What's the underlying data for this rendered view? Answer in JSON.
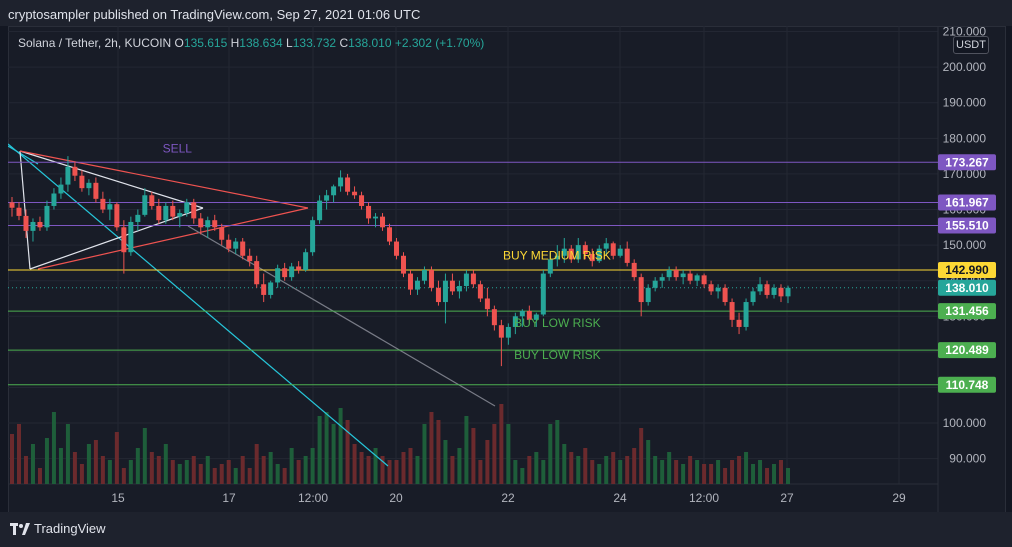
{
  "header": {
    "published_text": "cryptosampler published on TradingView.com, Sep 27, 2021 01:06 UTC"
  },
  "symbol": {
    "name": "Solana / Tether, 2h, KUCOIN",
    "o_label": "O",
    "o": "135.615",
    "h_label": "H",
    "h": "138.634",
    "l_label": "L",
    "l": "133.732",
    "c_label": "C",
    "c": "138.010",
    "change": "+2.302 (+1.70%)"
  },
  "currency_badge": "USDT",
  "footer": {
    "logo_text": "TradingView"
  },
  "chart_data": {
    "type": "candlestick",
    "xlabel": "",
    "ylabel": "",
    "ylim": [
      84,
      211
    ],
    "x_ticks": [
      "15",
      "17",
      "12:00",
      "20",
      "22",
      "24",
      "12:00",
      "27",
      "29"
    ],
    "y_ticks": [
      "90.000",
      "100.000",
      "110.000",
      "120.000",
      "130.000",
      "140.000",
      "150.000",
      "160.000",
      "170.000",
      "180.000",
      "190.000",
      "200.000",
      "210.000"
    ],
    "levels": [
      {
        "value": 173.267,
        "label": "173.267",
        "color": "#7e57c2"
      },
      {
        "value": 161.967,
        "label": "161.967",
        "color": "#7e57c2"
      },
      {
        "value": 155.51,
        "label": "155.510",
        "color": "#7e57c2"
      },
      {
        "value": 142.99,
        "label": "142.990",
        "color": "#fdd835"
      },
      {
        "value": 131.456,
        "label": "131.456",
        "color": "#4caf50"
      },
      {
        "value": 120.489,
        "label": "120.489",
        "color": "#4caf50"
      },
      {
        "value": 110.748,
        "label": "110.748",
        "color": "#4caf50"
      }
    ],
    "last_price": {
      "value": 138.01,
      "label": "138.010",
      "color": "#26a69a"
    },
    "annotations": [
      {
        "text": "SELL",
        "x": 15.8,
        "y": 176,
        "color": "#7e57c2"
      },
      {
        "text": "BUY MEDIUM RISK",
        "x": 21.9,
        "y": 146,
        "color": "#fdd835"
      },
      {
        "text": "BUY LOW RISK",
        "x": 22.1,
        "y": 127,
        "color": "#4caf50"
      },
      {
        "text": "BUY LOW RISK",
        "x": 22.1,
        "y": 118,
        "color": "#4caf50"
      }
    ],
    "candles": [
      [
        162.0,
        163.5,
        158.0,
        160.5
      ],
      [
        160.5,
        162.0,
        157.0,
        158.2
      ],
      [
        158.2,
        160.0,
        152.0,
        154.0
      ],
      [
        154.0,
        157.5,
        151.0,
        156.5
      ],
      [
        156.5,
        158.0,
        154.0,
        155.0
      ],
      [
        155.0,
        162.5,
        154.0,
        161.0
      ],
      [
        161.0,
        166.0,
        160.0,
        164.5
      ],
      [
        164.5,
        169.0,
        163.0,
        167.0
      ],
      [
        167.0,
        175.0,
        165.0,
        172.0
      ],
      [
        172.0,
        173.5,
        168.0,
        169.5
      ],
      [
        169.5,
        171.0,
        165.0,
        166.0
      ],
      [
        166.0,
        168.5,
        164.0,
        167.5
      ],
      [
        167.5,
        169.0,
        162.0,
        163.0
      ],
      [
        163.0,
        165.0,
        159.0,
        160.0
      ],
      [
        160.0,
        163.0,
        157.0,
        161.5
      ],
      [
        161.5,
        162.0,
        154.0,
        155.0
      ],
      [
        155.0,
        157.0,
        142.0,
        148.0
      ],
      [
        148.0,
        158.0,
        147.0,
        156.5
      ],
      [
        156.5,
        160.0,
        154.0,
        158.5
      ],
      [
        158.5,
        166.0,
        158.0,
        164.0
      ],
      [
        164.0,
        165.0,
        160.0,
        161.0
      ],
      [
        161.0,
        163.0,
        156.0,
        157.0
      ],
      [
        157.0,
        162.0,
        156.0,
        161.0
      ],
      [
        161.0,
        162.5,
        157.0,
        158.0
      ],
      [
        158.0,
        160.0,
        155.0,
        159.0
      ],
      [
        159.0,
        163.0,
        158.0,
        162.0
      ],
      [
        162.0,
        163.0,
        156.0,
        157.5
      ],
      [
        157.5,
        159.0,
        153.0,
        155.0
      ],
      [
        155.0,
        158.0,
        152.0,
        157.0
      ],
      [
        157.0,
        158.5,
        154.0,
        155.0
      ],
      [
        155.0,
        156.0,
        150.0,
        151.5
      ],
      [
        151.5,
        153.0,
        148.0,
        149.0
      ],
      [
        149.0,
        152.0,
        147.5,
        151.0
      ],
      [
        151.0,
        152.0,
        146.0,
        147.0
      ],
      [
        147.0,
        149.0,
        144.0,
        145.5
      ],
      [
        145.5,
        147.0,
        138.0,
        139.0
      ],
      [
        139.0,
        142.0,
        134.0,
        136.0
      ],
      [
        136.0,
        140.0,
        135.0,
        139.5
      ],
      [
        139.5,
        144.5,
        138.0,
        143.5
      ],
      [
        143.5,
        145.0,
        140.0,
        141.0
      ],
      [
        141.0,
        145.0,
        140.0,
        144.0
      ],
      [
        144.0,
        145.5,
        142.0,
        143.0
      ],
      [
        143.0,
        149.0,
        142.5,
        148.0
      ],
      [
        148.0,
        158.0,
        147.0,
        157.0
      ],
      [
        157.0,
        164.0,
        156.0,
        162.5
      ],
      [
        162.5,
        165.5,
        160.0,
        164.0
      ],
      [
        164.0,
        167.0,
        162.0,
        166.5
      ],
      [
        166.5,
        171.0,
        165.0,
        169.0
      ],
      [
        169.0,
        170.0,
        164.0,
        165.0
      ],
      [
        165.0,
        166.5,
        163.0,
        164.0
      ],
      [
        164.0,
        165.0,
        160.0,
        161.0
      ],
      [
        161.0,
        162.0,
        156.0,
        157.5
      ],
      [
        157.5,
        159.0,
        155.0,
        158.0
      ],
      [
        158.0,
        159.0,
        154.0,
        155.0
      ],
      [
        155.0,
        156.0,
        150.0,
        151.0
      ],
      [
        151.0,
        152.0,
        146.0,
        147.0
      ],
      [
        147.0,
        148.0,
        141.0,
        142.0
      ],
      [
        142.0,
        143.0,
        136.0,
        137.5
      ],
      [
        137.5,
        141.0,
        136.0,
        140.0
      ],
      [
        140.0,
        144.0,
        139.0,
        143.0
      ],
      [
        143.0,
        144.0,
        137.0,
        138.0
      ],
      [
        138.0,
        140.0,
        133.0,
        134.0
      ],
      [
        134.0,
        142.0,
        128.0,
        140.0
      ],
      [
        140.0,
        142.0,
        136.0,
        137.0
      ],
      [
        137.0,
        140.0,
        135.0,
        138.5
      ],
      [
        138.5,
        143.0,
        137.0,
        142.0
      ],
      [
        142.0,
        143.0,
        138.0,
        139.0
      ],
      [
        139.0,
        140.0,
        134.0,
        135.0
      ],
      [
        135.0,
        138.0,
        130.0,
        132.0
      ],
      [
        132.0,
        133.0,
        126.0,
        127.5
      ],
      [
        127.5,
        129.0,
        116.0,
        124.0
      ],
      [
        124.0,
        128.0,
        122.0,
        127.0
      ],
      [
        127.0,
        131.0,
        125.0,
        130.0
      ],
      [
        130.0,
        132.0,
        127.0,
        131.5
      ],
      [
        131.5,
        133.0,
        128.0,
        129.0
      ],
      [
        129.0,
        131.0,
        127.0,
        130.5
      ],
      [
        130.5,
        143.0,
        130.0,
        142.0
      ],
      [
        142.0,
        148.0,
        141.0,
        146.0
      ],
      [
        146.0,
        150.0,
        144.0,
        147.0
      ],
      [
        147.0,
        152.0,
        145.0,
        149.0
      ],
      [
        149.0,
        150.0,
        145.0,
        146.0
      ],
      [
        146.0,
        152.0,
        145.0,
        150.0
      ],
      [
        150.0,
        151.0,
        146.0,
        147.5
      ],
      [
        147.5,
        149.0,
        144.0,
        145.5
      ],
      [
        145.5,
        150.0,
        145.0,
        149.0
      ],
      [
        149.0,
        152.0,
        147.0,
        150.5
      ],
      [
        150.5,
        151.0,
        146.0,
        147.0
      ],
      [
        147.0,
        150.0,
        146.5,
        149.0
      ],
      [
        149.0,
        151.0,
        144.0,
        145.0
      ],
      [
        145.0,
        146.0,
        140.0,
        141.0
      ],
      [
        141.0,
        142.0,
        130.0,
        134.0
      ],
      [
        134.0,
        139.0,
        133.0,
        138.0
      ],
      [
        138.0,
        141.0,
        137.0,
        140.0
      ],
      [
        140.0,
        142.0,
        138.0,
        141.0
      ],
      [
        141.0,
        144.0,
        140.0,
        143.0
      ],
      [
        143.0,
        144.0,
        140.0,
        141.0
      ],
      [
        141.0,
        143.0,
        139.0,
        142.0
      ],
      [
        142.0,
        143.0,
        139.0,
        140.0
      ],
      [
        140.0,
        142.0,
        138.5,
        141.5
      ],
      [
        141.5,
        142.0,
        138.0,
        139.0
      ],
      [
        139.0,
        140.0,
        136.0,
        137.0
      ],
      [
        137.0,
        139.0,
        135.0,
        138.0
      ],
      [
        138.0,
        139.0,
        133.0,
        134.0
      ],
      [
        134.0,
        135.0,
        127.0,
        129.0
      ],
      [
        129.0,
        131.0,
        125.0,
        127.0
      ],
      [
        127.0,
        135.0,
        126.0,
        134.0
      ],
      [
        134.0,
        138.0,
        133.0,
        137.0
      ],
      [
        137.0,
        141.0,
        136.0,
        139.0
      ],
      [
        139.0,
        140.0,
        135.0,
        136.0
      ],
      [
        136.0,
        139.0,
        135.0,
        138.0
      ],
      [
        138.0,
        139.0,
        134.0,
        135.6
      ],
      [
        135.6,
        138.6,
        133.7,
        138.0
      ]
    ],
    "volumes": [
      25,
      30,
      14,
      20,
      8,
      23,
      36,
      18,
      30,
      16,
      10,
      20,
      22,
      14,
      12,
      26,
      8,
      12,
      18,
      28,
      16,
      14,
      20,
      12,
      10,
      12,
      14,
      10,
      14,
      8,
      10,
      12,
      8,
      14,
      8,
      20,
      14,
      16,
      10,
      8,
      18,
      12,
      14,
      18,
      34,
      36,
      30,
      38,
      32,
      20,
      16,
      14,
      18,
      14,
      12,
      12,
      16,
      18,
      14,
      30,
      36,
      32,
      22,
      14,
      18,
      34,
      28,
      12,
      22,
      30,
      40,
      30,
      12,
      8,
      14,
      16,
      12,
      30,
      32,
      20,
      16,
      14,
      18,
      12,
      10,
      14,
      16,
      12,
      14,
      18,
      28,
      22,
      14,
      12,
      16,
      12,
      10,
      14,
      12,
      10,
      10,
      12,
      8,
      12,
      14,
      16,
      10,
      12,
      8,
      10,
      12,
      8
    ]
  }
}
